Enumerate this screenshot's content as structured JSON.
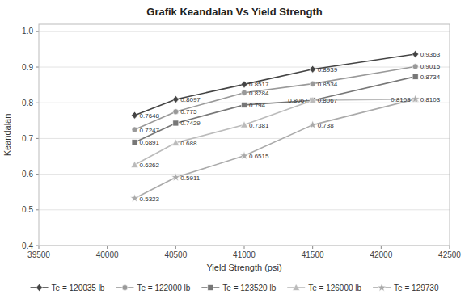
{
  "chart_data": {
    "type": "line",
    "title": "Grafik Keandalan Vs Yield Strength",
    "x_label": "Yield Strength (psi)",
    "y_label": "Keandalan",
    "x": [
      40200,
      40500,
      41000,
      41500,
      42250
    ],
    "xlim": [
      39500,
      42500
    ],
    "ylim": [
      0.4,
      1.02
    ],
    "xticks": [
      39500,
      40000,
      40500,
      41000,
      41500,
      42000,
      42500
    ],
    "yticks": [
      0.4,
      0.5,
      0.6,
      0.7,
      0.8,
      0.9,
      {
        "value": 1.0,
        "label": "1.0"
      }
    ],
    "grid": true,
    "data_labels": true,
    "series": [
      {
        "name": "Te = 120035 lb",
        "color": "#444444",
        "marker": "diamond",
        "values": [
          0.7648,
          0.8097,
          0.8517,
          0.8939,
          0.9363
        ]
      },
      {
        "name": "Te = 122000 lb",
        "color": "#999999",
        "marker": "circle",
        "values": [
          0.7247,
          0.775,
          0.8284,
          0.8534,
          0.9015
        ]
      },
      {
        "name": "Te = 123520 lb",
        "color": "#777777",
        "marker": "square",
        "values": [
          0.6891,
          0.7429,
          0.794,
          0.8067,
          0.8734
        ]
      },
      {
        "name": "Te = 126000 lb",
        "color": "#bbbbbb",
        "marker": "triangle",
        "values": [
          0.6262,
          0.688,
          0.7381,
          0.8067,
          0.8103
        ]
      },
      {
        "name": "Te = 129730",
        "color": "#aaaaaa",
        "marker": "star",
        "values": [
          0.5323,
          0.5911,
          0.6515,
          0.738,
          0.8103
        ]
      }
    ]
  }
}
